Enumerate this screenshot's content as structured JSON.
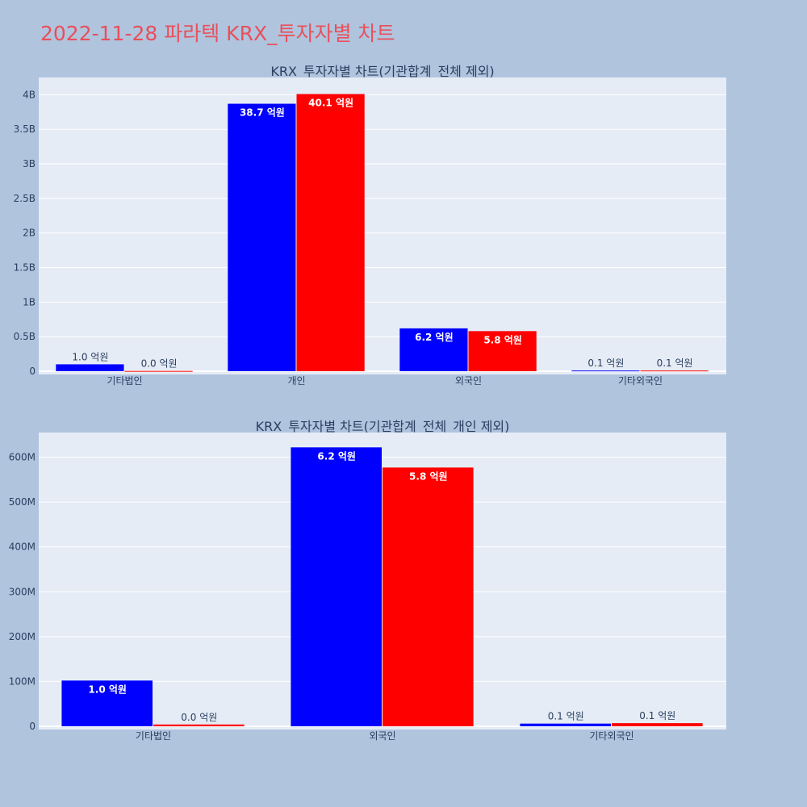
{
  "title": "2022-11-28 파라텍 KRX_투자자별 차트",
  "chart_data": [
    {
      "type": "bar",
      "title": "KRX_투자자별 차트(기관합계_전체 제외)",
      "categories": [
        "기타법인",
        "개인",
        "외국인",
        "기타외국인"
      ],
      "series": [
        {
          "color": "#0000ff",
          "values": [
            100000000,
            3870000000,
            620000000,
            10000000
          ],
          "labels": [
            "1.0 억원",
            "38.7 억원",
            "6.2 억원",
            "0.1 억원"
          ]
        },
        {
          "color": "#ff0000",
          "values": [
            4000000,
            4010000000,
            580000000,
            10000000
          ],
          "labels": [
            "0.0 억원",
            "40.1 억원",
            "5.8 억원",
            "0.1 억원"
          ]
        }
      ],
      "yticks": [
        0,
        500000000,
        1000000000,
        1500000000,
        2000000000,
        2500000000,
        3000000000,
        3500000000,
        4000000000
      ],
      "ytick_labels": [
        "0",
        "0.5B",
        "1B",
        "1.5B",
        "2B",
        "2.5B",
        "3B",
        "3.5B",
        "4B"
      ],
      "ylim": [
        0,
        4250000000
      ],
      "grid": true,
      "legend": "none"
    },
    {
      "type": "bar",
      "title": "KRX_투자자별 차트(기관합계_전체_개인 제외)",
      "categories": [
        "기타법인",
        "외국인",
        "기타외국인"
      ],
      "series": [
        {
          "color": "#0000ff",
          "values": [
            102000000,
            622000000,
            6000000
          ],
          "labels": [
            "1.0 억원",
            "6.2 억원",
            "0.1 억원"
          ]
        },
        {
          "color": "#ff0000",
          "values": [
            4000000,
            577000000,
            7000000
          ],
          "labels": [
            "0.0 억원",
            "5.8 억원",
            "0.1 억원"
          ]
        }
      ],
      "yticks": [
        0,
        100000000,
        200000000,
        300000000,
        400000000,
        500000000,
        600000000
      ],
      "ytick_labels": [
        "0",
        "100M",
        "200M",
        "300M",
        "400M",
        "500M",
        "600M"
      ],
      "ylim": [
        0,
        655000000
      ],
      "grid": true,
      "legend": "none"
    }
  ]
}
